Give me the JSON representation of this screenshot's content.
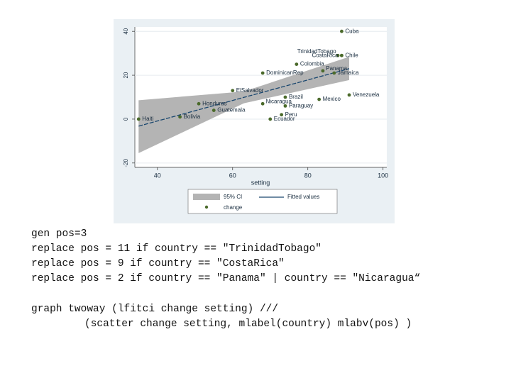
{
  "chart_data": {
    "type": "scatter",
    "x_label": "setting",
    "categories": [
      "Haiti",
      "Bolivia",
      "Honduras",
      "Guatemala",
      "ElSalvador",
      "DominicanRep",
      "Nicaragua",
      "Ecuador",
      "Peru",
      "Paraguay",
      "Brazil",
      "Colombia",
      "Mexico",
      "Panama",
      "TrinidadTobago",
      "CostaRica",
      "Chile",
      "Jamaica",
      "Cuba",
      "Venezuela"
    ],
    "label_positions": [
      3,
      3,
      3,
      3,
      3,
      3,
      2,
      3,
      3,
      3,
      3,
      3,
      3,
      2,
      11,
      9,
      3,
      3,
      3,
      3
    ],
    "series": [
      {
        "name": "change",
        "color": "#4b6a2b",
        "x": [
          35,
          46,
          51,
          55,
          60,
          68,
          68,
          70,
          73,
          74,
          74,
          77,
          83,
          84,
          88,
          89,
          89,
          87,
          89,
          91
        ],
        "values": [
          0,
          1,
          7,
          4,
          13,
          21,
          7,
          0,
          2,
          6,
          10,
          25,
          9,
          22,
          29,
          29,
          29,
          21,
          40,
          11
        ]
      }
    ],
    "fit": {
      "name": "Fitted values",
      "color": "#1a476f",
      "x": [
        35,
        63,
        91
      ],
      "values": [
        -3.2,
        9.9,
        23
      ]
    },
    "ci": {
      "name": "95% CI",
      "color": "#b4b4b4",
      "x": [
        35,
        63,
        91
      ],
      "lower": [
        -15.5,
        7.2,
        17.8
      ],
      "upper": [
        8.6,
        12.6,
        28.4
      ]
    },
    "xlim": [
      34,
      101
    ],
    "xticks": [
      40,
      60,
      80,
      100
    ],
    "ylim": [
      -22,
      42
    ],
    "yticks": [
      -20,
      0,
      20,
      40
    ],
    "grid": true
  },
  "code": [
    "gen pos=3",
    "replace pos = 11 if country == \"TrinidadTobago\"",
    "replace pos = 9 if country == \"CostaRica\"",
    "replace pos = 2 if country == \"Panama\" | country == \"Nicaragua“",
    "graph twoway (lfitci change setting) ///",
    "(scatter change setting, mlabel(country) mlabv(pos) )"
  ]
}
